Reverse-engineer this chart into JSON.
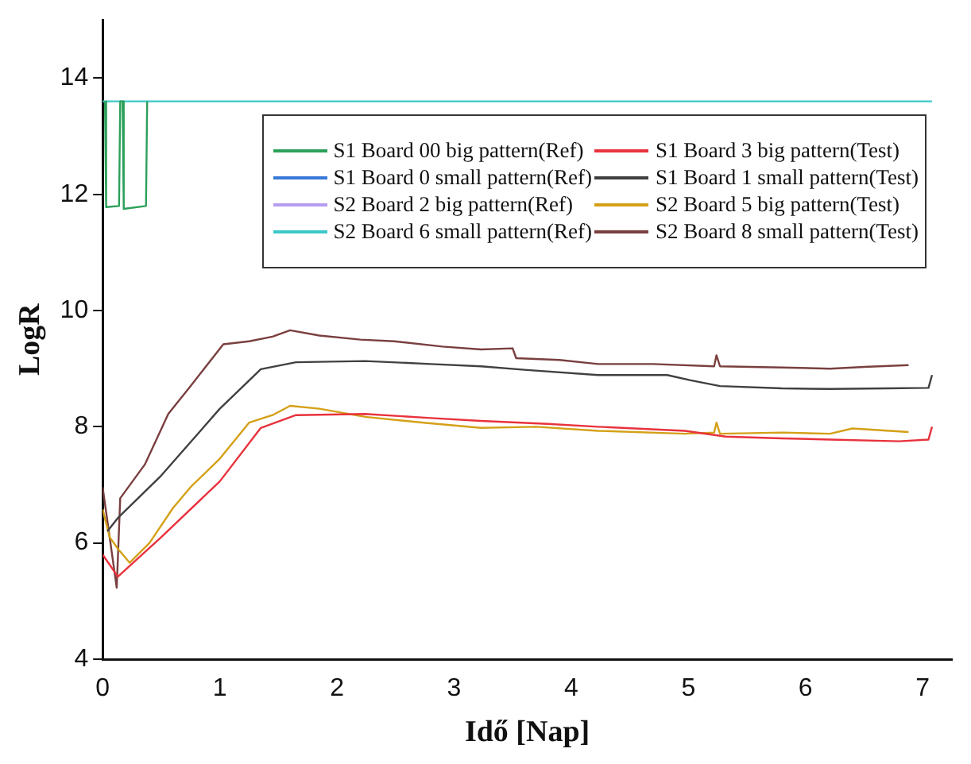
{
  "chart_data": {
    "type": "line",
    "xlabel": "Idő [Nap]",
    "ylabel": "LogR",
    "xlim": [
      0,
      7.25
    ],
    "xticks": [
      0,
      1,
      2,
      3,
      4,
      5,
      6,
      7
    ],
    "ylim": [
      4,
      15
    ],
    "yticks": [
      4,
      6,
      8,
      10,
      12,
      14
    ],
    "grid": false,
    "legend": "top right",
    "marker": "none",
    "line_style": "solid",
    "series": [
      {
        "name": "S1 Board 00 big pattern(Ref)",
        "color": "#2ca05a",
        "x": [
          0.02,
          0.03,
          0.14,
          0.15,
          0.17,
          0.18,
          0.37,
          0.38
        ],
        "values": [
          13.6,
          11.78,
          11.8,
          13.6,
          13.6,
          11.75,
          11.8,
          13.6
        ]
      },
      {
        "name": "S1 Board 0 small pattern(Ref)",
        "color": "#3a78d8"
      },
      {
        "name": "S2 Board 2 big pattern(Ref)",
        "color": "#b59cf0"
      },
      {
        "name": "S2 Board 6 small pattern(Ref)",
        "color": "#3cc8c8",
        "x": [
          0,
          7.08
        ],
        "values": [
          13.6,
          13.6
        ]
      },
      {
        "name": "S1 Board 3 big pattern(Test)",
        "color": "#e8323c",
        "x": [
          0,
          0.13,
          0.5,
          1.0,
          1.35,
          1.65,
          2.24,
          2.8,
          3.23,
          3.8,
          4.23,
          4.97,
          5.32,
          5.8,
          6.21,
          6.8,
          7.05,
          7.08
        ],
        "values": [
          5.8,
          5.42,
          6.1,
          7.06,
          7.98,
          8.2,
          8.22,
          8.15,
          8.1,
          8.05,
          8.0,
          7.93,
          7.83,
          7.8,
          7.78,
          7.75,
          7.78,
          8.0
        ]
      },
      {
        "name": "S1 Board 1 small pattern(Test)",
        "color": "#404040",
        "x": [
          0.04,
          0.13,
          0.5,
          1.0,
          1.35,
          1.65,
          2.24,
          2.8,
          3.23,
          3.6,
          4.23,
          4.82,
          5.02,
          5.27,
          5.8,
          6.21,
          6.7,
          7.05,
          7.08
        ],
        "values": [
          6.2,
          6.43,
          7.16,
          8.31,
          8.99,
          9.11,
          9.13,
          9.08,
          9.04,
          8.98,
          8.89,
          8.89,
          8.8,
          8.7,
          8.66,
          8.65,
          8.66,
          8.67,
          8.89
        ]
      },
      {
        "name": "S2 Board 5 big pattern(Test)",
        "color": "#d4a017",
        "x": [
          0,
          0.06,
          0.13,
          0.23,
          0.4,
          0.6,
          0.75,
          1.0,
          1.25,
          1.45,
          1.6,
          1.85,
          2.24,
          2.74,
          3.23,
          3.7,
          4.23,
          4.97,
          5.22,
          5.24,
          5.27,
          5.8,
          6.21,
          6.4,
          6.88
        ],
        "values": [
          6.58,
          6.1,
          5.9,
          5.66,
          6.0,
          6.6,
          6.96,
          7.45,
          8.07,
          8.2,
          8.36,
          8.31,
          8.17,
          8.07,
          7.98,
          8.0,
          7.93,
          7.88,
          7.9,
          8.07,
          7.88,
          7.9,
          7.88,
          7.97,
          7.91
        ]
      },
      {
        "name": "S2 Board 8 small pattern(Test)",
        "color": "#7a3f3f",
        "x": [
          0,
          0.12,
          0.15,
          0.36,
          0.56,
          0.75,
          1.03,
          1.25,
          1.45,
          1.6,
          1.85,
          2.2,
          2.49,
          2.9,
          3.23,
          3.5,
          3.53,
          3.9,
          4.23,
          4.7,
          5.22,
          5.24,
          5.27,
          5.8,
          6.21,
          6.5,
          6.88
        ],
        "values": [
          6.96,
          5.23,
          6.77,
          7.35,
          8.22,
          8.7,
          9.42,
          9.47,
          9.55,
          9.66,
          9.57,
          9.5,
          9.47,
          9.38,
          9.33,
          9.35,
          9.18,
          9.15,
          9.08,
          9.08,
          9.04,
          9.23,
          9.04,
          9.02,
          9.0,
          9.03,
          9.06
        ]
      }
    ]
  }
}
